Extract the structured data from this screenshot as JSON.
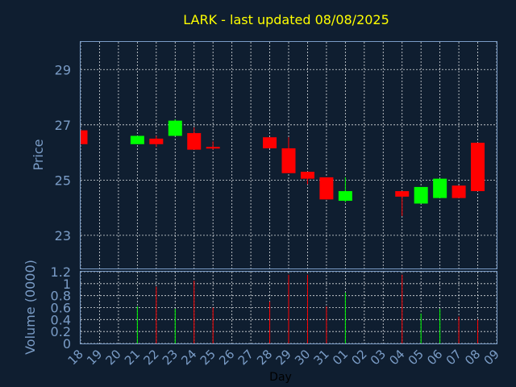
{
  "chart_data": {
    "type": "candlestick",
    "title": "LARK - last updated 08/08/2025",
    "xlabel": "Day",
    "price_ylabel": "Price",
    "volume_ylabel": "Volume (0000)",
    "x_ticks": [
      "18",
      "19",
      "20",
      "21",
      "22",
      "23",
      "24",
      "25",
      "26",
      "27",
      "28",
      "29",
      "30",
      "31",
      "01",
      "02",
      "03",
      "04",
      "05",
      "06",
      "07",
      "08",
      "09"
    ],
    "price_ylim": [
      21.8,
      30
    ],
    "price_yticks": [
      "23",
      "25",
      "27",
      "29"
    ],
    "volume_ylim": [
      0,
      1.2
    ],
    "volume_yticks": [
      "0",
      "0.2",
      "0.4",
      "0.6",
      "0.8",
      "1",
      "1.2"
    ],
    "up_color": "#00ff00",
    "down_color": "#ff0000",
    "candles": [
      {
        "day": "18",
        "open": 26.8,
        "high": 26.8,
        "low": 26.3,
        "close": 26.3,
        "volume": 0.0
      },
      {
        "day": "21",
        "open": 26.3,
        "high": 26.6,
        "low": 26.3,
        "close": 26.6,
        "volume": 0.62
      },
      {
        "day": "22",
        "open": 26.5,
        "high": 26.6,
        "low": 26.2,
        "close": 26.3,
        "volume": 0.95
      },
      {
        "day": "23",
        "open": 26.6,
        "high": 27.2,
        "low": 26.6,
        "close": 27.15,
        "volume": 0.58
      },
      {
        "day": "24",
        "open": 26.7,
        "high": 26.9,
        "low": 26.1,
        "close": 26.1,
        "volume": 1.05
      },
      {
        "day": "25",
        "open": 26.2,
        "high": 26.4,
        "low": 26.1,
        "close": 26.15,
        "volume": 0.6
      },
      {
        "day": "28",
        "open": 26.55,
        "high": 26.55,
        "low": 26.15,
        "close": 26.15,
        "volume": 0.7
      },
      {
        "day": "29",
        "open": 26.15,
        "high": 26.55,
        "low": 25.25,
        "close": 25.25,
        "volume": 1.15
      },
      {
        "day": "30",
        "open": 25.3,
        "high": 25.3,
        "low": 24.85,
        "close": 25.05,
        "volume": 1.15
      },
      {
        "day": "31",
        "open": 25.1,
        "high": 25.1,
        "low": 24.3,
        "close": 24.3,
        "volume": 0.62
      },
      {
        "day": "01",
        "open": 24.25,
        "high": 25.1,
        "low": 24.2,
        "close": 24.6,
        "volume": 0.85
      },
      {
        "day": "04",
        "open": 24.6,
        "high": 24.6,
        "low": 23.7,
        "close": 24.4,
        "volume": 1.15
      },
      {
        "day": "05",
        "open": 24.15,
        "high": 24.75,
        "low": 24.15,
        "close": 24.75,
        "volume": 0.5
      },
      {
        "day": "06",
        "open": 24.35,
        "high": 25.05,
        "low": 24.35,
        "close": 25.05,
        "volume": 0.58
      },
      {
        "day": "07",
        "open": 24.8,
        "high": 24.8,
        "low": 24.35,
        "close": 24.35,
        "volume": 0.45
      },
      {
        "day": "08",
        "open": 26.35,
        "high": 26.35,
        "low": 24.6,
        "close": 24.6,
        "volume": 0.4
      }
    ]
  }
}
